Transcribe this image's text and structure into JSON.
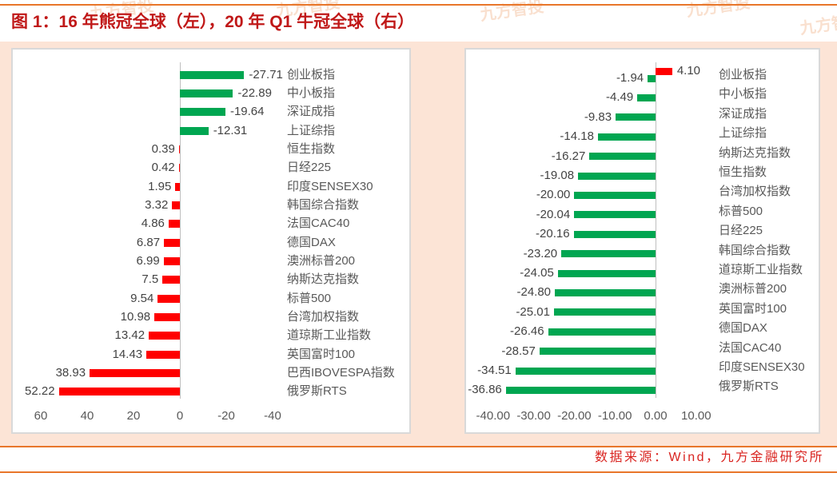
{
  "page": {
    "title": "图 1：16 年熊冠全球（左），20 年 Q1 牛冠全球（右）",
    "source": "数据来源：Wind，九方金融研究所",
    "watermark": "九方智投"
  },
  "colors": {
    "accent_orange": "#e8762a",
    "title_red": "#c01818",
    "source_red": "#d92420",
    "bar_green": "#00a651",
    "bar_red": "#ff0000",
    "background_peach": "#fce4d6",
    "panel_border": "#d9d9d9",
    "axis_line_gray": "#bfbfbf",
    "label_gray": "#595959"
  },
  "chart_data": [
    {
      "id": "left",
      "type": "bar",
      "orientation": "horizontal",
      "axis_reversed": true,
      "xlim": [
        60,
        -40
      ],
      "grid": false,
      "legend": false,
      "title": "",
      "xlabel": "",
      "ylabel": "",
      "ticks": [
        {
          "value": 60,
          "label": "60"
        },
        {
          "value": 40,
          "label": "40"
        },
        {
          "value": 20,
          "label": "20"
        },
        {
          "value": 0,
          "label": "0"
        },
        {
          "value": -20,
          "label": "-20"
        },
        {
          "value": -40,
          "label": "-40"
        }
      ],
      "rows": [
        {
          "label": "创业板指",
          "bars": [
            {
              "value": -27.71,
              "display": "-27.71",
              "color": "green"
            }
          ]
        },
        {
          "label": "中小板指",
          "bars": [
            {
              "value": -22.89,
              "display": "-22.89",
              "color": "green"
            }
          ]
        },
        {
          "label": "深证成指",
          "bars": [
            {
              "value": -19.64,
              "display": "-19.64",
              "color": "green"
            }
          ]
        },
        {
          "label": "上证综指",
          "bars": [
            {
              "value": -12.31,
              "display": "-12.31",
              "color": "green"
            }
          ]
        },
        {
          "label": "恒生指数",
          "bars": [
            {
              "value": 0.39,
              "display": "0.39",
              "color": "red"
            }
          ]
        },
        {
          "label": "日经225",
          "bars": [
            {
              "value": 0.42,
              "display": "0.42",
              "color": "red"
            }
          ]
        },
        {
          "label": "印度SENSEX30",
          "bars": [
            {
              "value": 1.95,
              "display": "1.95",
              "color": "red"
            }
          ]
        },
        {
          "label": "韩国综合指数",
          "bars": [
            {
              "value": 3.32,
              "display": "3.32",
              "color": "red"
            }
          ]
        },
        {
          "label": "法国CAC40",
          "bars": [
            {
              "value": 4.86,
              "display": "4.86",
              "color": "red"
            }
          ]
        },
        {
          "label": "德国DAX",
          "bars": [
            {
              "value": 6.87,
              "display": "6.87",
              "color": "red"
            }
          ]
        },
        {
          "label": "澳洲标普200",
          "bars": [
            {
              "value": 6.99,
              "display": "6.99",
              "color": "red"
            }
          ]
        },
        {
          "label": "纳斯达克指数",
          "bars": [
            {
              "value": 7.5,
              "display": "7.5",
              "color": "red"
            }
          ]
        },
        {
          "label": "标普500",
          "bars": [
            {
              "value": 9.54,
              "display": "9.54",
              "color": "red"
            }
          ]
        },
        {
          "label": "台湾加权指数",
          "bars": [
            {
              "value": 10.98,
              "display": "10.98",
              "color": "red"
            }
          ]
        },
        {
          "label": "道琼斯工业指数",
          "bars": [
            {
              "value": 13.42,
              "display": "13.42",
              "color": "red"
            }
          ]
        },
        {
          "label": "英国富时100",
          "bars": [
            {
              "value": 14.43,
              "display": "14.43",
              "color": "red"
            }
          ]
        },
        {
          "label": "巴西IBOVESPA指数",
          "bars": [
            {
              "value": 38.93,
              "display": "38.93",
              "color": "red"
            }
          ]
        },
        {
          "label": "俄罗斯RTS",
          "bars": [
            {
              "value": 52.22,
              "display": "52.22",
              "color": "red"
            }
          ]
        }
      ]
    },
    {
      "id": "right",
      "type": "bar",
      "orientation": "horizontal",
      "axis_reversed": false,
      "xlim": [
        -40,
        10
      ],
      "grid": false,
      "legend": false,
      "title": "",
      "xlabel": "",
      "ylabel": "",
      "ticks": [
        {
          "value": -40,
          "label": "-40.00"
        },
        {
          "value": -30,
          "label": "-30.00"
        },
        {
          "value": -20,
          "label": "-20.00"
        },
        {
          "value": -10,
          "label": "-10.00"
        },
        {
          "value": 0,
          "label": "0.00"
        },
        {
          "value": 10,
          "label": "10.00"
        }
      ],
      "rows": [
        {
          "label": "创业板指",
          "bars": [
            {
              "value": 4.1,
              "display": "4.10",
              "color": "red"
            },
            {
              "value": -1.94,
              "display": "-1.94",
              "color": "green"
            }
          ]
        },
        {
          "label": "中小板指",
          "bars": [
            {
              "value": -4.49,
              "display": "-4.49",
              "color": "green"
            }
          ]
        },
        {
          "label": "深证成指",
          "bars": [
            {
              "value": -9.83,
              "display": "-9.83",
              "color": "green"
            }
          ]
        },
        {
          "label": "上证综指",
          "bars": [
            {
              "value": -14.18,
              "display": "-14.18",
              "color": "green"
            }
          ]
        },
        {
          "label": "纳斯达克指数",
          "bars": [
            {
              "value": -16.27,
              "display": "-16.27",
              "color": "green"
            }
          ]
        },
        {
          "label": "恒生指数",
          "bars": [
            {
              "value": -19.08,
              "display": "-19.08",
              "color": "green"
            }
          ]
        },
        {
          "label": "台湾加权指数",
          "bars": [
            {
              "value": -20.0,
              "display": "-20.00",
              "color": "green"
            }
          ]
        },
        {
          "label": "标普500",
          "bars": [
            {
              "value": -20.04,
              "display": "-20.04",
              "color": "green"
            }
          ]
        },
        {
          "label": "日经225",
          "bars": [
            {
              "value": -20.16,
              "display": "-20.16",
              "color": "green"
            }
          ]
        },
        {
          "label": "韩国综合指数",
          "bars": [
            {
              "value": -23.2,
              "display": "-23.20",
              "color": "green"
            }
          ]
        },
        {
          "label": "道琼斯工业指数",
          "bars": [
            {
              "value": -24.05,
              "display": "-24.05",
              "color": "green"
            }
          ]
        },
        {
          "label": "澳洲标普200",
          "bars": [
            {
              "value": -24.8,
              "display": "-24.80",
              "color": "green"
            }
          ]
        },
        {
          "label": "英国富时100",
          "bars": [
            {
              "value": -25.01,
              "display": "-25.01",
              "color": "green"
            }
          ]
        },
        {
          "label": "德国DAX",
          "bars": [
            {
              "value": -26.46,
              "display": "-26.46",
              "color": "green"
            }
          ]
        },
        {
          "label": "法国CAC40",
          "bars": [
            {
              "value": -28.57,
              "display": "-28.57",
              "color": "green"
            }
          ]
        },
        {
          "label": "印度SENSEX30",
          "bars": [
            {
              "value": -34.51,
              "display": "-34.51",
              "color": "green"
            }
          ]
        },
        {
          "label": "俄罗斯RTS",
          "bars": [
            {
              "value": -36.86,
              "display": "-36.86",
              "color": "green"
            }
          ]
        }
      ]
    }
  ]
}
